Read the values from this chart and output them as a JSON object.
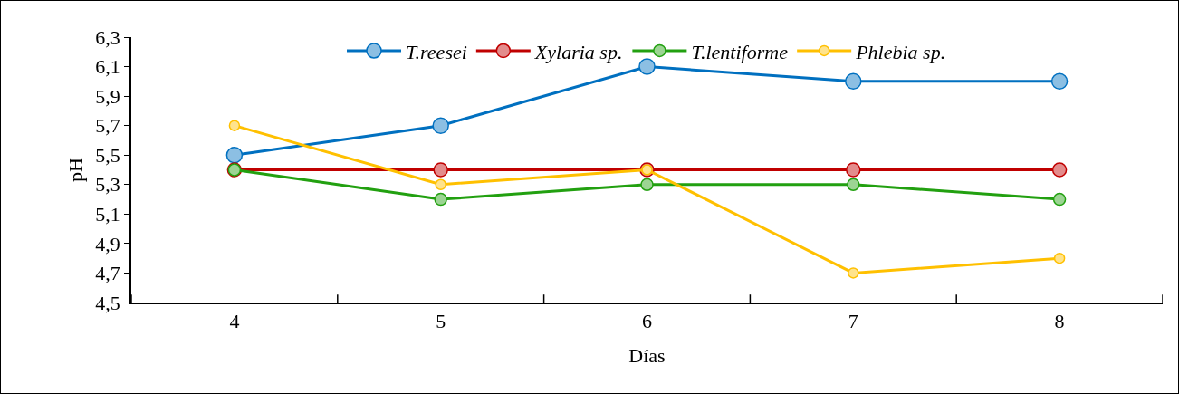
{
  "chart_data": {
    "type": "line",
    "xlabel": "Días",
    "ylabel": "pH",
    "categories": [
      "4",
      "5",
      "6",
      "7",
      "8"
    ],
    "ylim": [
      4.5,
      6.3
    ],
    "yticks": [
      {
        "value": 4.5,
        "label": "4,5"
      },
      {
        "value": 4.7,
        "label": "4,7"
      },
      {
        "value": 4.9,
        "label": "4,9"
      },
      {
        "value": 5.1,
        "label": "5,1"
      },
      {
        "value": 5.3,
        "label": "5,3"
      },
      {
        "value": 5.5,
        "label": "5,5"
      },
      {
        "value": 5.7,
        "label": "5,7"
      },
      {
        "value": 5.9,
        "label": "5,9"
      },
      {
        "value": 6.1,
        "label": "6,1"
      },
      {
        "value": 6.3,
        "label": "6,3"
      }
    ],
    "series": [
      {
        "name": "T.reesei",
        "color": "#0070c0",
        "values": [
          5.5,
          5.7,
          6.1,
          6.0,
          6.0
        ]
      },
      {
        "name": "Xylaria sp.",
        "color": "#c00000",
        "values": [
          5.4,
          5.4,
          5.4,
          5.4,
          5.4
        ]
      },
      {
        "name": "T.lentiforme",
        "color": "#22a010",
        "values": [
          5.4,
          5.2,
          5.3,
          5.3,
          5.2
        ]
      },
      {
        "name": "Phlebia sp.",
        "color": "#ffc000",
        "values": [
          5.7,
          5.3,
          5.4,
          4.7,
          4.8
        ]
      }
    ],
    "grid": false,
    "legend": "top",
    "marker": "circle",
    "line_style": "solid"
  }
}
